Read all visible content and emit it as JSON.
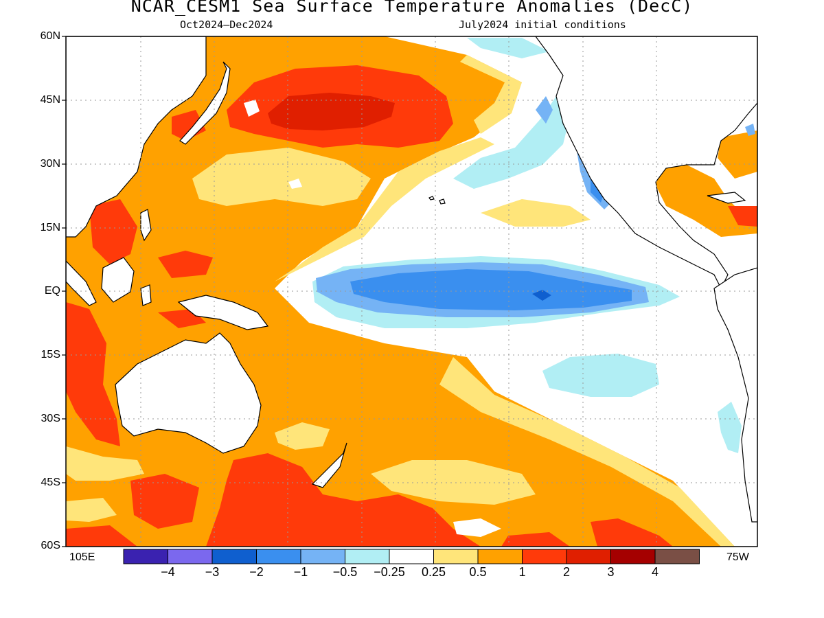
{
  "title": "NCAR_CESM1 Sea Surface Temperature Anomalies (DecC)",
  "subtitle_left": "Oct2024–Dec2024",
  "subtitle_right": "July2024 initial conditions",
  "lat_labels": [
    "60N",
    "45N",
    "30N",
    "15N",
    "EQ",
    "15S",
    "30S",
    "45S",
    "60S"
  ],
  "lon_labels": {
    "left": "105E",
    "right": "75W"
  },
  "colorbar": {
    "colors": [
      "#3a22b0",
      "#7b68ee",
      "#0f5fcf",
      "#3a8fef",
      "#75b3f5",
      "#b1eef4",
      "#ffffff",
      "#ffe57a",
      "#ffa100",
      "#ff3a0a",
      "#e01f00",
      "#a50000",
      "#7a4f45"
    ],
    "labels": [
      "−4",
      "−3",
      "−2",
      "−1",
      "−0.5",
      "−0.25",
      "0.25",
      "0.5",
      "1",
      "2",
      "3",
      "4"
    ]
  },
  "colors": {
    "grid": "#999999",
    "land_outline": "#000000",
    "land_fill": "#ffffff"
  }
}
